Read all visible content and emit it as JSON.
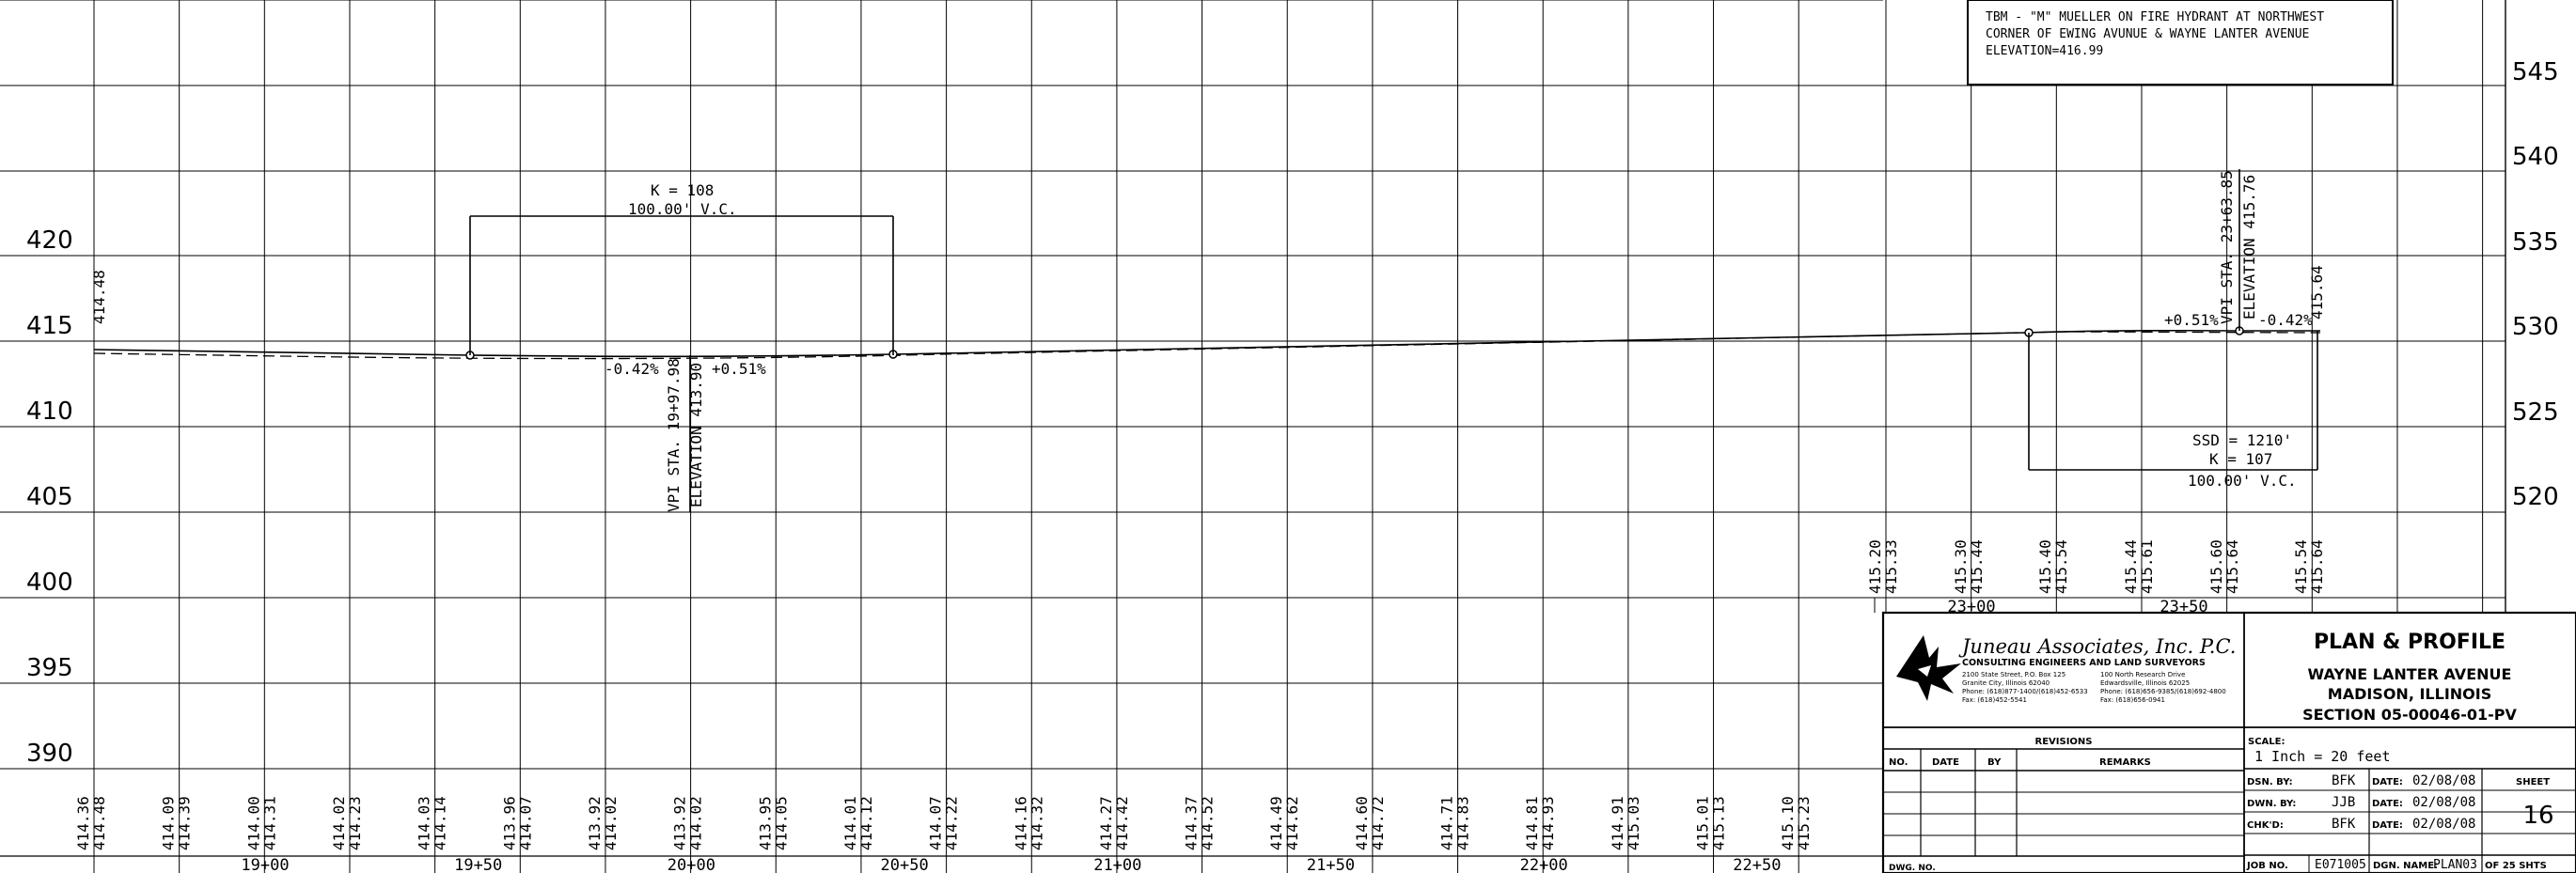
{
  "elev_left": [
    "420",
    "415",
    "410",
    "405",
    "400",
    "395",
    "390"
  ],
  "elev_right": [
    "545",
    "540",
    "535",
    "530",
    "525",
    "520"
  ],
  "tbm_note": {
    "line1": "TBM - \"M\" MUELLER ON FIRE HYDRANT AT NORTHWEST",
    "line2": "CORNER OF EWING AVUNUE & WAYNE LANTER AVENUE",
    "line3": "ELEVATION=416.99"
  },
  "curve1": {
    "k": "K = 108",
    "vc": "100.00'  V.C.",
    "grade_in": "-0.42%",
    "grade_out": "+0.51%",
    "vpi_sta": "VPI STA. 19+97.98",
    "vpi_elev": "ELEVATION 413.90"
  },
  "curve2": {
    "grade_in": "+0.51%",
    "grade_out": "-0.42%",
    "vpi_sta": "VPI STA. 23+63.85",
    "vpi_elev": "ELEVATION 415.76",
    "end_elev": "415.64",
    "ssd": "SSD = 1210'",
    "k": "K = 107",
    "vc": "100.00'  V.C."
  },
  "start_elev": "414.48",
  "bottom_elevations": [
    [
      "414.36",
      "414.48"
    ],
    [
      "414.09",
      "414.39"
    ],
    [
      "414.00",
      "414.31"
    ],
    [
      "414.02",
      "414.23"
    ],
    [
      "414.03",
      "414.14"
    ],
    [
      "413.96",
      "414.07"
    ],
    [
      "413.92",
      "414.02"
    ],
    [
      "413.92",
      "414.02"
    ],
    [
      "413.95",
      "414.05"
    ],
    [
      "414.01",
      "414.12"
    ],
    [
      "414.07",
      "414.22"
    ],
    [
      "414.16",
      "414.32"
    ],
    [
      "414.27",
      "414.42"
    ],
    [
      "414.37",
      "414.52"
    ],
    [
      "414.49",
      "414.62"
    ],
    [
      "414.60",
      "414.72"
    ],
    [
      "414.71",
      "414.83"
    ],
    [
      "414.81",
      "414.93"
    ],
    [
      "414.91",
      "415.03"
    ],
    [
      "415.01",
      "415.13"
    ],
    [
      "415.10",
      "415.23"
    ]
  ],
  "bottom_stations": [
    "19+00",
    "19+50",
    "20+00",
    "20+50",
    "21+00",
    "21+50",
    "22+00",
    "22+50"
  ],
  "right_elevations": [
    [
      "415.20",
      "415.33"
    ],
    [
      "415.30",
      "415.44"
    ],
    [
      "415.40",
      "415.54"
    ],
    [
      "415.44",
      "415.61"
    ],
    [
      "415.60",
      "415.64"
    ],
    [
      "415.54",
      "415.64"
    ]
  ],
  "right_stations": [
    "23+00",
    "23+50"
  ],
  "title_block": {
    "firm_name": "Juneau Associates, Inc. P.C.",
    "firm_sub": "CONSULTING ENGINEERS AND LAND SURVEYORS",
    "addr1_l1": "2100 State Street, P.O. Box 125",
    "addr1_l2": "Granite City, Illinois 62040",
    "addr1_l3": "Phone: (618)877-1400/(618)452-6533",
    "addr1_l4": "Fax: (618)452-5541",
    "addr2_l1": "100 North Research Drive",
    "addr2_l2": "Edwardsville, Illinois 62025",
    "addr2_l3": "Phone: (618)656-9385/(618)692-4800",
    "addr2_l4": "Fax: (618)656-0941",
    "plan_title": "PLAN & PROFILE",
    "street": "WAYNE LANTER AVENUE",
    "city": "MADISON, ILLINOIS",
    "section": "SECTION 05-00046-01-PV",
    "revisions": "REVISIONS",
    "col_no": "NO.",
    "col_date": "DATE",
    "col_by": "BY",
    "col_remarks": "REMARKS",
    "scale_label": "SCALE:",
    "scale_value": "1 Inch = 20 feet",
    "dsn_by_label": "DSN. BY:",
    "dsn_by": "BFK",
    "dwn_by_label": "DWN. BY:",
    "dwn_by": "JJB",
    "chkd_label": "CHK'D:",
    "chkd": "BFK",
    "date_label": "DATE:",
    "date1": "02/08/08",
    "date2": "02/08/08",
    "date3": "02/08/08",
    "sheet_label": "SHEET",
    "sheet_no": "16",
    "dwg_no": "DWG. NO.",
    "job_no_label": "JOB NO.",
    "job_no": "E071005",
    "dgn_label": "DGN. NAME:",
    "dgn": "PLAN03",
    "of_shts": "OF 25 SHTS"
  }
}
